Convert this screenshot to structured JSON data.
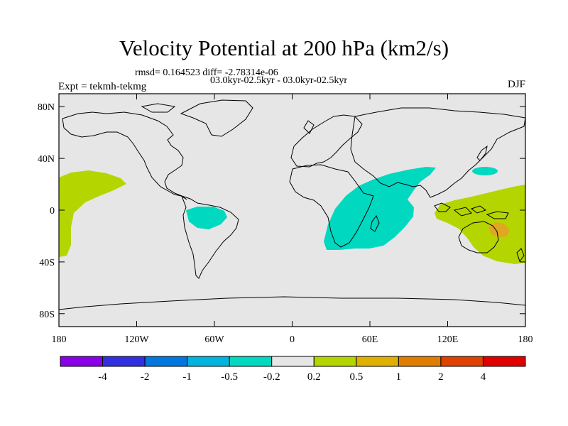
{
  "title": "Velocity Potential at 200 hPa (km2/s)",
  "stats_line": "rmsd= 0.164523 diff= -2.78314e-06",
  "period_line": "03.0kyr-02.5kyr - 03.0kyr-02.5kyr",
  "experiment_label": "Expt = tekmh-tekmg",
  "season_label": "DJF",
  "map": {
    "projection": "cylindrical equidistant",
    "lon_range": [
      -180,
      180
    ],
    "lat_range": [
      -90,
      90
    ],
    "background_color": "#e6e6e6",
    "coastline_color": "#000000",
    "lon_ticks": [
      "180",
      "120W",
      "60W",
      "0",
      "60E",
      "120E",
      "180"
    ],
    "lat_ticks": [
      "80N",
      "40N",
      "0",
      "40S",
      "80S"
    ],
    "anomaly_regions": [
      {
        "name": "central-pacific-positive",
        "level": "0.2 to 0.5",
        "color": "#b4d500"
      },
      {
        "name": "amazon-negative",
        "level": "-0.5 to -0.2",
        "color": "#00d8c0"
      },
      {
        "name": "africa-indian-ocean-negative",
        "level": "-0.5 to -0.2",
        "color": "#00d8c0"
      },
      {
        "name": "north-pacific-negative",
        "level": "-0.5 to -0.2",
        "color": "#00d8c0"
      },
      {
        "name": "maritime-continent-positive",
        "level": "0.2 to 0.5",
        "color": "#b4d500"
      },
      {
        "name": "western-pacific-max",
        "level": "0.5 to 1",
        "color": "#e0a820"
      }
    ]
  },
  "colorbar": {
    "colors": [
      "#8a00e8",
      "#3030e0",
      "#0078e0",
      "#00b4e0",
      "#00d8c0",
      "#e6e6e6",
      "#b4d500",
      "#e0b000",
      "#e07c00",
      "#e04000",
      "#e00000"
    ],
    "labels": [
      "-4",
      "-2",
      "-1",
      "-0.5",
      "-0.2",
      "0.2",
      "0.5",
      "1",
      "2",
      "4"
    ]
  }
}
